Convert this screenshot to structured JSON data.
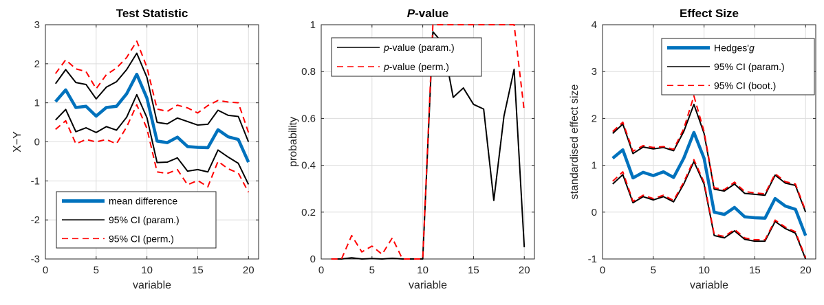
{
  "chart_data": [
    {
      "type": "line",
      "title": "Test Statistic",
      "xlabel": "variable",
      "ylabel": "X−Y",
      "xlim": [
        0,
        21
      ],
      "ylim": [
        -3,
        3
      ],
      "xticks": [
        "0",
        "5",
        "10",
        "15",
        "20"
      ],
      "yticks": [
        "-3",
        "-2",
        "-1",
        "0",
        "1",
        "2",
        "3"
      ],
      "grid": true,
      "legend": "bottom-left",
      "x": [
        1,
        2,
        3,
        4,
        5,
        6,
        7,
        8,
        9,
        10,
        11,
        12,
        13,
        14,
        15,
        16,
        17,
        18,
        19,
        20
      ],
      "series": [
        {
          "name": "mean difference",
          "color": "#0072BD",
          "style": "thick",
          "values": [
            1.03,
            1.33,
            0.88,
            0.91,
            0.66,
            0.88,
            0.91,
            1.23,
            1.73,
            1.12,
            0.02,
            -0.02,
            0.12,
            -0.12,
            -0.14,
            -0.15,
            0.31,
            0.13,
            0.06,
            -0.52
          ]
        },
        {
          "name": "95% CI (param.)",
          "color": "#000000",
          "style": "solid",
          "values": [
            1.49,
            1.85,
            1.52,
            1.47,
            1.1,
            1.4,
            1.54,
            1.85,
            2.27,
            1.65,
            0.5,
            0.46,
            0.61,
            0.52,
            0.43,
            0.45,
            0.81,
            0.68,
            0.65,
            0.0
          ]
        },
        {
          "name": "",
          "color": "#000000",
          "style": "solid",
          "values": [
            0.56,
            0.83,
            0.26,
            0.36,
            0.24,
            0.39,
            0.3,
            0.63,
            1.21,
            0.62,
            -0.53,
            -0.52,
            -0.41,
            -0.75,
            -0.71,
            -0.77,
            -0.21,
            -0.39,
            -0.55,
            -1.09
          ]
        },
        {
          "name": "95% CI (perm.)",
          "color": "#FF0000",
          "style": "dashed",
          "values": [
            1.75,
            2.1,
            1.87,
            1.8,
            1.36,
            1.72,
            1.89,
            2.16,
            2.58,
            1.91,
            0.84,
            0.78,
            0.94,
            0.87,
            0.74,
            0.93,
            1.06,
            1.02,
            1.0,
            0.24
          ]
        },
        {
          "name": "",
          "color": "#FF0000",
          "style": "dashed",
          "values": [
            0.32,
            0.54,
            -0.05,
            0.06,
            0.0,
            0.06,
            -0.05,
            0.38,
            0.95,
            0.34,
            -0.77,
            -0.81,
            -0.71,
            -1.1,
            -0.99,
            -1.15,
            -0.5,
            -0.69,
            -0.8,
            -1.29
          ]
        }
      ]
    },
    {
      "type": "line",
      "title": "P-value",
      "title_parts": [
        "P",
        "-value"
      ],
      "xlabel": "variable",
      "ylabel": "probability",
      "xlim": [
        0,
        21
      ],
      "ylim": [
        0,
        1
      ],
      "xticks": [
        "0",
        "5",
        "10",
        "15",
        "20"
      ],
      "yticks": [
        "0",
        "0.2",
        "0.4",
        "0.6",
        "0.8",
        "1"
      ],
      "grid": true,
      "legend": "top-left",
      "x": [
        1,
        2,
        3,
        4,
        5,
        6,
        7,
        8,
        9,
        10,
        11,
        12,
        13,
        14,
        15,
        16,
        17,
        18,
        19,
        20
      ],
      "series": [
        {
          "name": "p-value (param.)",
          "name_parts": [
            "p",
            "-value (param.)"
          ],
          "color": "#000000",
          "style": "solid",
          "values": [
            0.0,
            0.0,
            0.005,
            0.0,
            0.002,
            0.0,
            0.003,
            0.0,
            0.0,
            0.0,
            0.97,
            0.92,
            0.69,
            0.73,
            0.66,
            0.64,
            0.25,
            0.61,
            0.81,
            0.05
          ]
        },
        {
          "name": "p-value (perm.)",
          "name_parts": [
            "p",
            "-value (perm.)"
          ],
          "color": "#FF0000",
          "style": "dashed",
          "values": [
            0.0,
            0.0,
            0.1,
            0.03,
            0.055,
            0.02,
            0.09,
            0.0,
            0.0,
            0.0,
            1.0,
            1.0,
            1.0,
            1.0,
            1.0,
            1.0,
            1.0,
            1.0,
            1.0,
            0.63
          ]
        }
      ]
    },
    {
      "type": "line",
      "title": "Effect Size",
      "xlabel": "variable",
      "ylabel": "standardised effect size",
      "xlim": [
        0,
        21
      ],
      "ylim": [
        -1,
        4
      ],
      "xticks": [
        "0",
        "5",
        "10",
        "15",
        "20"
      ],
      "yticks": [
        "-1",
        "0",
        "1",
        "2",
        "3",
        "4"
      ],
      "grid": true,
      "legend": "top-right",
      "x": [
        1,
        2,
        3,
        4,
        5,
        6,
        7,
        8,
        9,
        10,
        11,
        12,
        13,
        14,
        15,
        16,
        17,
        18,
        19,
        20
      ],
      "series": [
        {
          "name": "Hedges'g",
          "name_parts": [
            "Hedges'",
            "g"
          ],
          "color": "#0072BD",
          "style": "thick",
          "values": [
            1.15,
            1.33,
            0.73,
            0.85,
            0.78,
            0.86,
            0.74,
            1.15,
            1.7,
            1.15,
            0.0,
            -0.05,
            0.1,
            -0.1,
            -0.12,
            -0.13,
            0.29,
            0.13,
            0.06,
            -0.5
          ]
        },
        {
          "name": "95% CI (param.)",
          "color": "#000000",
          "style": "solid",
          "values": [
            1.68,
            1.88,
            1.25,
            1.39,
            1.35,
            1.38,
            1.31,
            1.72,
            2.3,
            1.68,
            0.49,
            0.45,
            0.6,
            0.4,
            0.38,
            0.36,
            0.79,
            0.62,
            0.57,
            0.0
          ]
        },
        {
          "name": "",
          "color": "#000000",
          "style": "solid",
          "values": [
            0.6,
            0.8,
            0.2,
            0.33,
            0.26,
            0.33,
            0.22,
            0.6,
            1.08,
            0.6,
            -0.5,
            -0.55,
            -0.4,
            -0.58,
            -0.62,
            -0.62,
            -0.2,
            -0.35,
            -0.45,
            -1.0
          ]
        },
        {
          "name": "95% CI (boot.)",
          "color": "#FF0000",
          "style": "dashed",
          "values": [
            1.72,
            1.92,
            1.3,
            1.42,
            1.38,
            1.4,
            1.34,
            1.78,
            2.48,
            1.72,
            0.52,
            0.48,
            0.64,
            0.44,
            0.41,
            0.39,
            0.82,
            0.65,
            0.6,
            0.03
          ]
        },
        {
          "name": "",
          "color": "#FF0000",
          "style": "dashed",
          "values": [
            0.66,
            0.86,
            0.23,
            0.36,
            0.29,
            0.36,
            0.25,
            0.64,
            1.12,
            0.64,
            -0.47,
            -0.52,
            -0.37,
            -0.55,
            -0.59,
            -0.59,
            -0.17,
            -0.32,
            -0.42,
            -0.97
          ]
        }
      ]
    }
  ]
}
